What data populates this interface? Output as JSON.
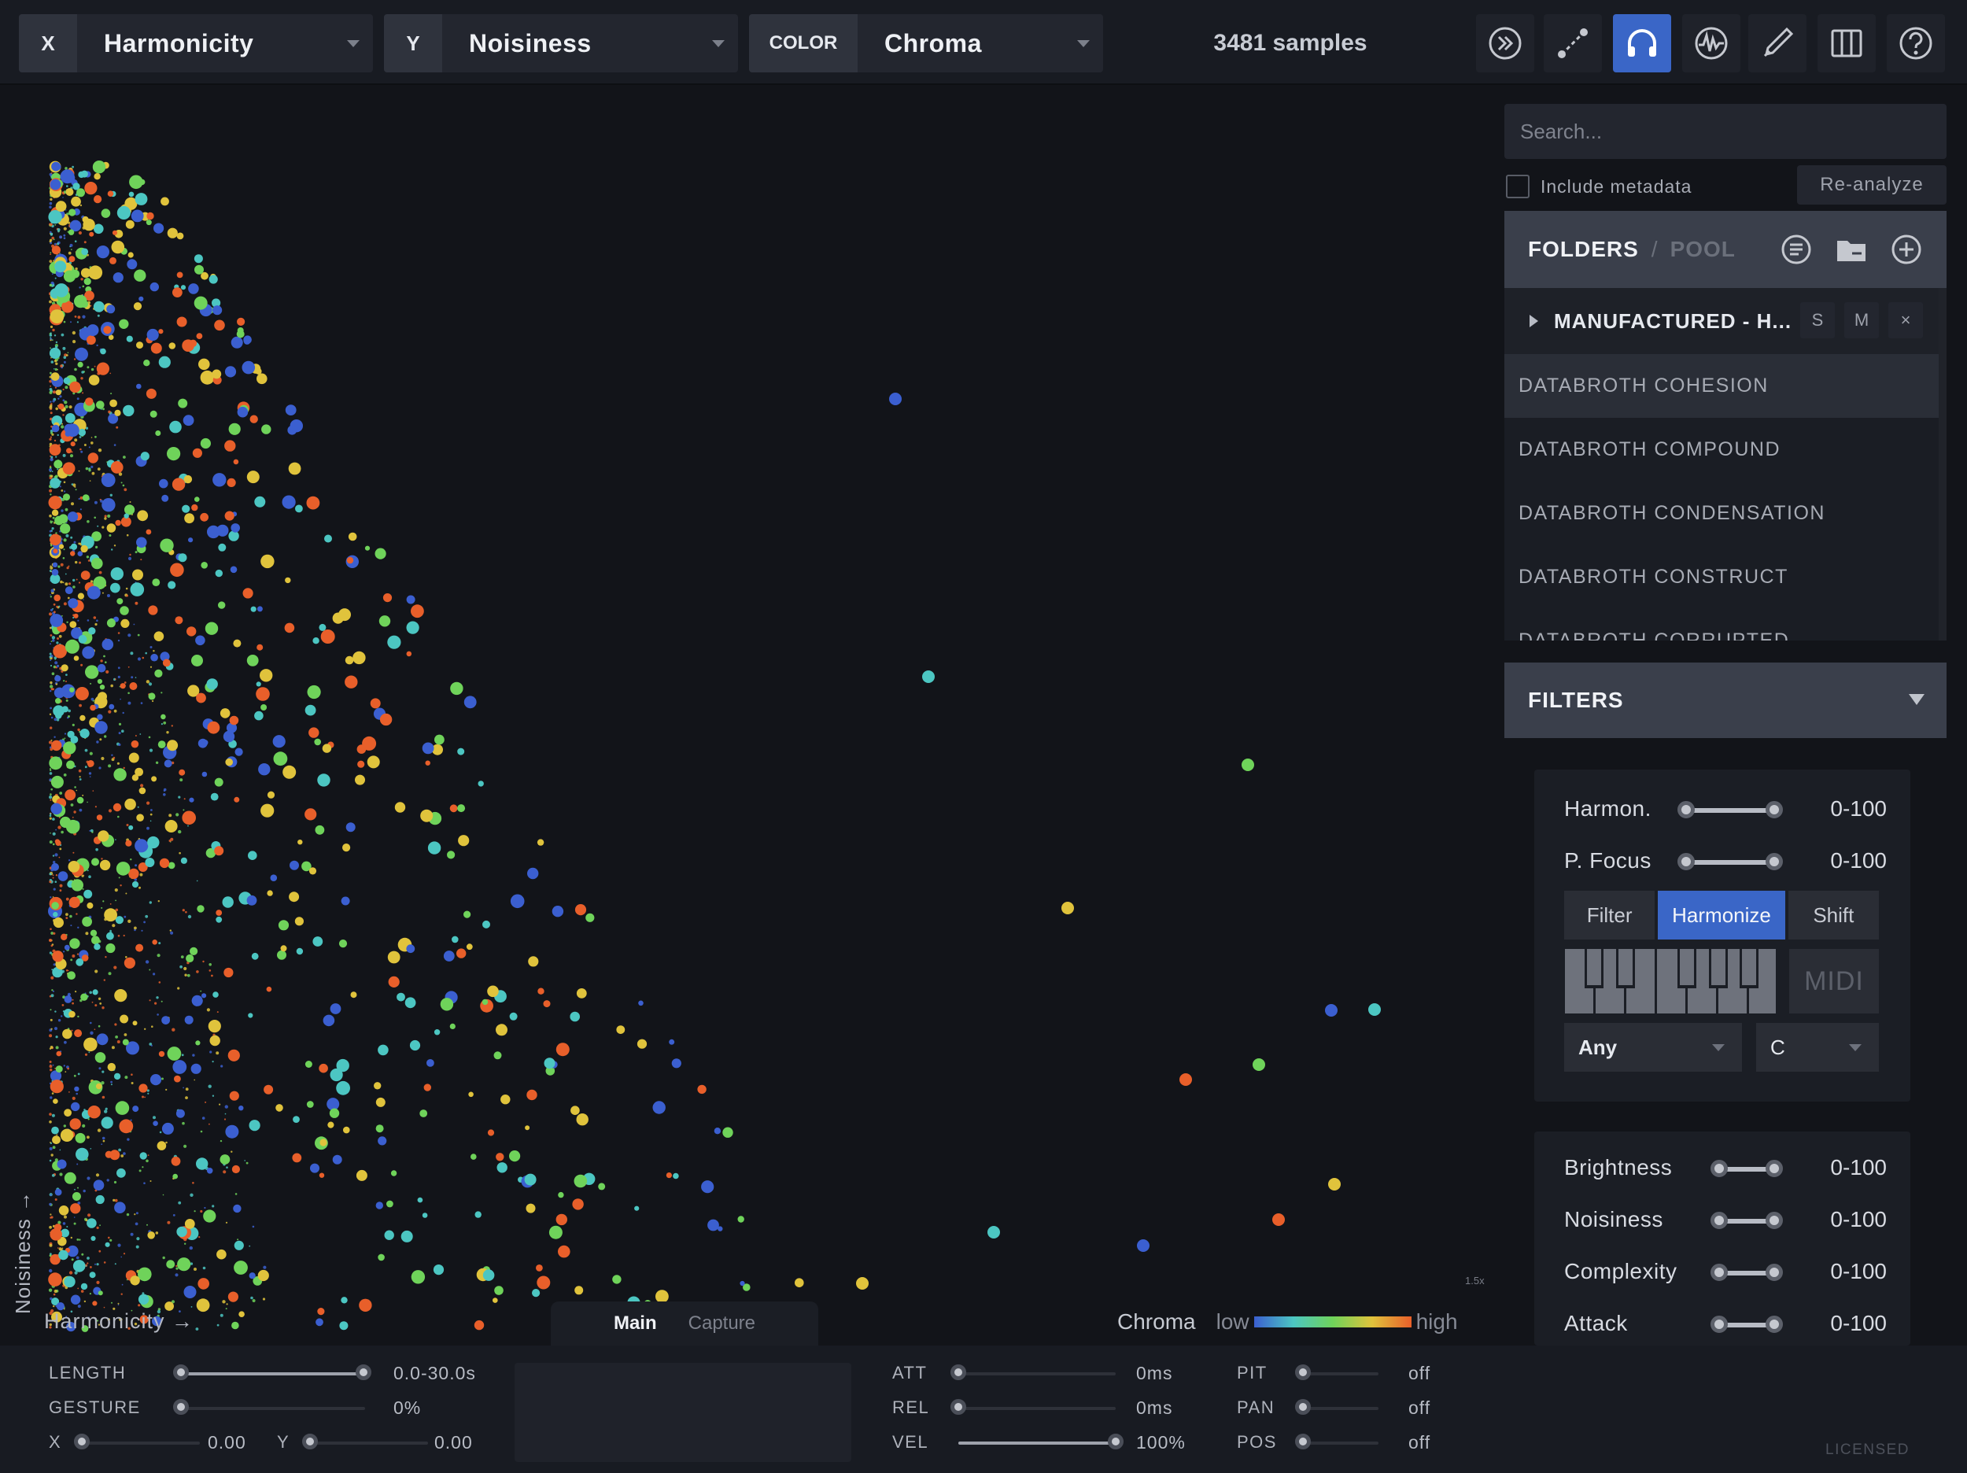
{
  "topbar": {
    "x_axis": {
      "tag": "X",
      "value": "Harmonicity"
    },
    "y_axis": {
      "tag": "Y",
      "value": "Noisiness"
    },
    "color_axis": {
      "tag": "COLOR",
      "value": "Chroma"
    },
    "samples": "3481 samples",
    "tools": [
      "play-forward-icon",
      "line-tool-icon",
      "headphones-icon",
      "waveform-icon",
      "pen-icon",
      "library-icon",
      "help-icon"
    ],
    "active_tool": "headphones-icon",
    "accent": "#3a66c7"
  },
  "plot": {
    "x_label": "Harmonicity →",
    "y_label": "Noisiness →",
    "zoom": "1.5x",
    "tabs": {
      "main": "Main",
      "capture": "Capture"
    },
    "legend": {
      "title": "Chroma",
      "low": "low",
      "high": "high",
      "colors": [
        "#3b5fd0",
        "#4cc6c2",
        "#6fd35a",
        "#e0c33c",
        "#e85f2a"
      ]
    }
  },
  "sidebar": {
    "search_placeholder": "Search...",
    "include_metadata": "Include metadata",
    "reanalyze": "Re-analyze",
    "folders_tab": "FOLDERS",
    "tab_sep": "/",
    "pool_tab": "POOL",
    "folder_parent": "MANUFACTURED - H...",
    "folder_btn_s": "S",
    "folder_btn_m": "M",
    "folder_btn_x": "×",
    "folders": [
      "DATABROTH COHESION",
      "DATABROTH COMPOUND",
      "DATABROTH CONDENSATION",
      "DATABROTH CONSTRUCT",
      "DATABROTH CORRUPTED"
    ],
    "filters_title": "FILTERS",
    "pitch_filters": [
      {
        "label": "Harmon.",
        "value": "0-100"
      },
      {
        "label": "P. Focus",
        "value": "0-100"
      }
    ],
    "modes": [
      "Filter",
      "Harmonize",
      "Shift"
    ],
    "active_mode": "Harmonize",
    "midi": "MIDI",
    "scale": "Any",
    "key": "C",
    "timbre_filters": [
      {
        "label": "Brightness",
        "value": "0-100"
      },
      {
        "label": "Noisiness",
        "value": "0-100"
      },
      {
        "label": "Complexity",
        "value": "0-100"
      },
      {
        "label": "Attack",
        "value": "0-100"
      }
    ]
  },
  "bottom": {
    "length": {
      "label": "LENGTH",
      "value": "0.0-30.0s"
    },
    "gesture": {
      "label": "GESTURE",
      "value": "0%",
      "level": 0
    },
    "x": {
      "label": "X",
      "value": "0.00"
    },
    "y": {
      "label": "Y",
      "value": "0.00"
    },
    "att": {
      "label": "ATT",
      "value": "0ms",
      "level": 0
    },
    "rel": {
      "label": "REL",
      "value": "0ms",
      "level": 0
    },
    "vel": {
      "label": "VEL",
      "value": "100%",
      "level": 1
    },
    "pit": {
      "label": "PIT",
      "value": "off"
    },
    "pan": {
      "label": "PAN",
      "value": "off"
    },
    "pos": {
      "label": "POS",
      "value": "off"
    },
    "licensed": "LICENSED"
  }
}
